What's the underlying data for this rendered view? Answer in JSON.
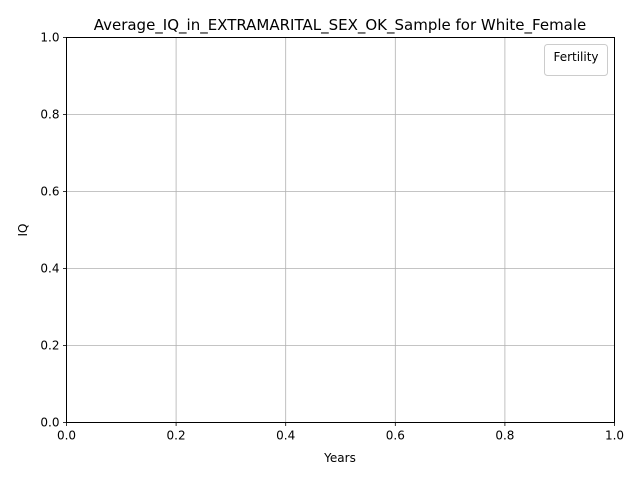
{
  "chart_data": {
    "type": "line",
    "title": "Average_IQ_in_EXTRAMARITAL_SEX_OK_Sample for White_Female",
    "xlabel": "Years",
    "ylabel": "IQ",
    "xlim": [
      0.0,
      1.0
    ],
    "ylim": [
      0.0,
      1.0
    ],
    "xticks": [
      "0.0",
      "0.2",
      "0.4",
      "0.6",
      "0.8",
      "1.0"
    ],
    "yticks": [
      "0.0",
      "0.2",
      "0.4",
      "0.6",
      "0.8",
      "1.0"
    ],
    "grid": true,
    "legend": {
      "title": "Fertility",
      "placement": "top-right",
      "entries": []
    },
    "series": []
  }
}
